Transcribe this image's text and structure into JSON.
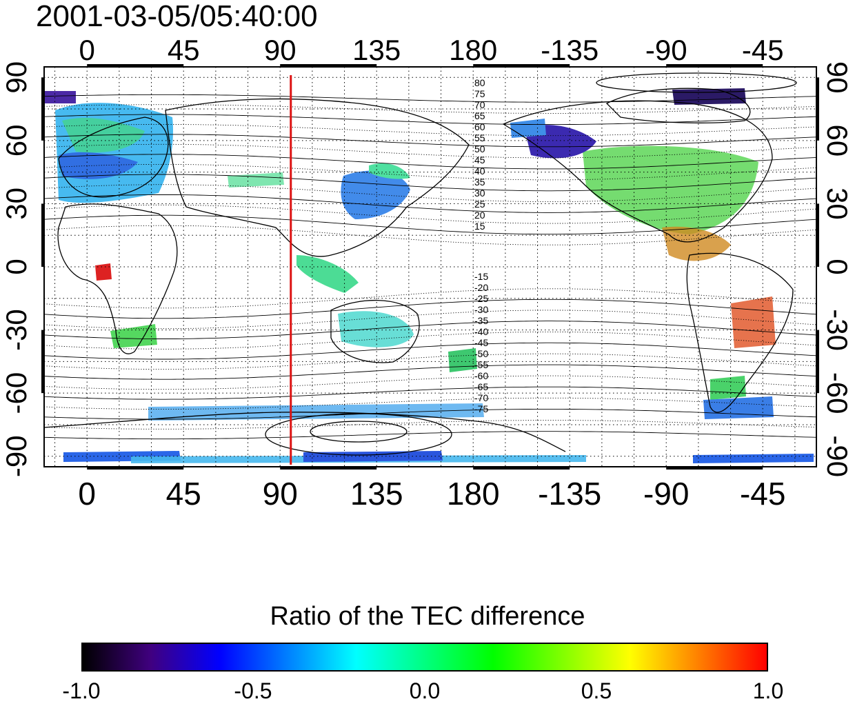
{
  "timestamp": "2001-03-05/05:40:00",
  "map": {
    "top_lon_labels": [
      "0",
      "45",
      "90",
      "135",
      "180",
      "-135",
      "-90",
      "-45"
    ],
    "bottom_lon_labels": [
      "0",
      "45",
      "90",
      "135",
      "180",
      "-135",
      "-90",
      "-45"
    ],
    "left_lat_labels": [
      "90",
      "60",
      "30",
      "0",
      "-30",
      "-60",
      "-90"
    ],
    "right_lat_labels": [
      "90",
      "60",
      "30",
      "0",
      "-30",
      "-60",
      "-90"
    ],
    "north_contour_labels": [
      "80",
      "75",
      "70",
      "65",
      "60",
      "55",
      "50",
      "45",
      "40",
      "35",
      "30",
      "25",
      "20",
      "15"
    ],
    "south_contour_labels": [
      "-15",
      "-20",
      "-25",
      "-30",
      "-35",
      "-40",
      "-45",
      "-50",
      "-55",
      "-60",
      "-65",
      "-70",
      "-75"
    ],
    "red_meridian_lon": 95,
    "grid_style": "dotted",
    "colors": {
      "meridian": "#dd1111",
      "contour": "#000000",
      "coastline": "#000000"
    }
  },
  "colorbar": {
    "title": "Ratio of the TEC difference",
    "ticks": [
      "-1.0",
      "-0.5",
      "0.0",
      "0.5",
      "1.0"
    ],
    "stops": [
      "#000000",
      "#400080",
      "#0000ff",
      "#0080ff",
      "#00ffff",
      "#00ff80",
      "#00ff00",
      "#80ff00",
      "#ffff00",
      "#ff8000",
      "#ff0000"
    ]
  }
}
